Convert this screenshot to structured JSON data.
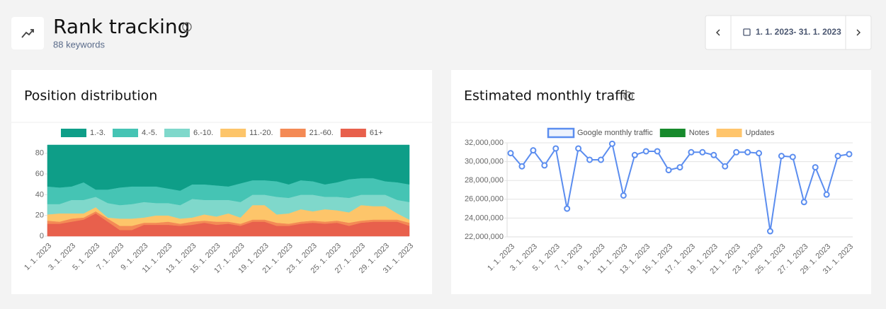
{
  "header": {
    "title": "Rank tracking",
    "subtitle": "88 keywords",
    "date_range": "1. 1. 2023- 31. 1. 2023"
  },
  "chart_data": [
    {
      "type": "area",
      "stacked": true,
      "title": "Position distribution",
      "categories": [
        "1. 1. 2023",
        null,
        "3. 1. 2023",
        null,
        "5. 1. 2023",
        null,
        "7. 1. 2023",
        null,
        "9. 1. 2023",
        null,
        "11. 1. 2023",
        null,
        "13. 1. 2023",
        null,
        "15. 1. 2023",
        null,
        "17. 1. 2023",
        null,
        "19. 1. 2023",
        null,
        "21. 1. 2023",
        null,
        "23. 1. 2023",
        null,
        "25. 1. 2023",
        null,
        "27. 1. 2023",
        null,
        "29. 1. 2023",
        null,
        "31. 1. 2023"
      ],
      "series": [
        {
          "name": "1.-3.",
          "color": "#0e9e88",
          "values": [
            40,
            41,
            40,
            36,
            43,
            43,
            41,
            40,
            40,
            40,
            42,
            44,
            38,
            38,
            39,
            40,
            37,
            34,
            34,
            35,
            38,
            34,
            35,
            38,
            36,
            33,
            32,
            32,
            35,
            36,
            38
          ]
        },
        {
          "name": "4.-5.",
          "color": "#45c4b4",
          "values": [
            17,
            16,
            13,
            17,
            7,
            13,
            17,
            17,
            15,
            16,
            14,
            14,
            14,
            15,
            14,
            13,
            18,
            14,
            14,
            15,
            13,
            14,
            13,
            12,
            14,
            18,
            16,
            16,
            13,
            17,
            17
          ]
        },
        {
          "name": "6.-10.",
          "color": "#7fd8cb",
          "values": [
            10,
            9,
            13,
            13,
            10,
            14,
            13,
            14,
            15,
            12,
            12,
            13,
            18,
            14,
            16,
            13,
            15,
            10,
            10,
            17,
            15,
            14,
            16,
            12,
            13,
            14,
            10,
            11,
            11,
            13,
            17
          ]
        },
        {
          "name": "11.-20.",
          "color": "#fdc56a",
          "values": [
            6,
            8,
            5,
            4,
            4,
            1,
            7,
            7,
            5,
            7,
            6,
            5,
            4,
            6,
            5,
            8,
            6,
            14,
            14,
            8,
            10,
            12,
            9,
            12,
            10,
            10,
            15,
            13,
            13,
            6,
            3
          ]
        },
        {
          "name": "21.-60.",
          "color": "#f48a55",
          "values": [
            3,
            2,
            3,
            2,
            2,
            3,
            4,
            4,
            2,
            2,
            3,
            2,
            3,
            2,
            3,
            2,
            2,
            2,
            2,
            3,
            2,
            2,
            2,
            2,
            2,
            3,
            2,
            2,
            2,
            2,
            3
          ]
        },
        {
          "name": "61+",
          "color": "#e8604c",
          "values": [
            12,
            12,
            14,
            16,
            22,
            14,
            6,
            6,
            11,
            11,
            11,
            10,
            11,
            13,
            11,
            12,
            10,
            14,
            14,
            10,
            10,
            12,
            13,
            12,
            13,
            10,
            13,
            14,
            14,
            14,
            10
          ]
        }
      ],
      "ylim": [
        0,
        88
      ],
      "yticks": [
        0,
        20,
        40,
        60,
        80
      ],
      "grid": false
    },
    {
      "type": "line",
      "title": "Estimated monthly traffic",
      "categories": [
        "1. 1. 2023",
        null,
        "3. 1. 2023",
        null,
        "5. 1. 2023",
        null,
        "7. 1. 2023",
        null,
        "9. 1. 2023",
        null,
        "11. 1. 2023",
        null,
        "13. 1. 2023",
        null,
        "15. 1. 2023",
        null,
        "17. 1. 2023",
        null,
        "19. 1. 2023",
        null,
        "21. 1. 2023",
        null,
        "23. 1. 2023",
        null,
        "25. 1. 2023",
        null,
        "27. 1. 2023",
        null,
        "29. 1. 2023",
        null,
        "31. 1. 2023"
      ],
      "series": [
        {
          "name": "Google monthly traffic",
          "color": "#5b8def",
          "values": [
            30900000,
            29500000,
            31200000,
            29600000,
            31400000,
            25000000,
            31400000,
            30200000,
            30200000,
            31900000,
            26400000,
            30700000,
            31100000,
            31100000,
            29100000,
            29400000,
            31000000,
            31000000,
            30700000,
            29500000,
            31000000,
            31000000,
            30900000,
            22600000,
            30600000,
            30500000,
            25700000,
            29400000,
            26500000,
            30600000,
            30800000
          ]
        }
      ],
      "legend_extra": [
        {
          "name": "Notes",
          "color": "#178a2c"
        },
        {
          "name": "Updates",
          "color": "#ffc56c"
        }
      ],
      "ylim": [
        22000000,
        32000000
      ],
      "yticks": [
        {
          "value": 22000000,
          "label": "22,000,000"
        },
        {
          "value": 24000000,
          "label": "24,000,000"
        },
        {
          "value": 26000000,
          "label": "26,000,000"
        },
        {
          "value": 28000000,
          "label": "28,000,000"
        },
        {
          "value": 30000000,
          "label": "30,000,000"
        },
        {
          "value": 32000000,
          "label": "32,000,000"
        }
      ],
      "grid": true
    }
  ]
}
